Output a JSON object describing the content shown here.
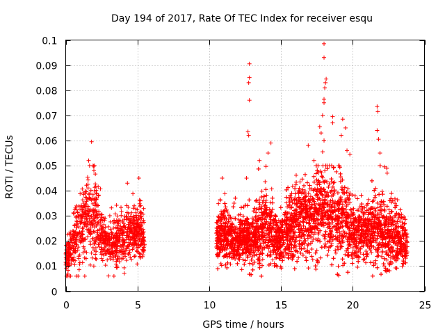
{
  "chart_data": {
    "type": "scatter",
    "title": "Day 194 of 2017, Rate Of TEC Index for receiver esqu",
    "xlabel": "GPS time / hours",
    "ylabel": "ROTI / TECUs",
    "xlim": [
      0,
      25
    ],
    "ylim": [
      0,
      0.1
    ],
    "xticks": [
      0,
      5,
      10,
      15,
      20,
      25
    ],
    "xtick_labels": [
      "0",
      "5",
      "10",
      "15",
      "20",
      "25"
    ],
    "yticks": [
      0,
      0.01,
      0.02,
      0.03,
      0.04,
      0.05,
      0.06,
      0.07,
      0.08,
      0.09,
      0.1
    ],
    "ytick_labels": [
      "0",
      "0.01",
      "0.02",
      "0.03",
      "0.04",
      "0.05",
      "0.06",
      "0.07",
      "0.08",
      "0.09",
      "0.1"
    ],
    "grid": true,
    "marker": "+",
    "color": "#ff0000",
    "series": [
      {
        "name": "ROTI",
        "segments": [
          {
            "x_start": 0.0,
            "x_end": 5.5,
            "density": 950,
            "profile": [
              [
                0.0,
                0.013,
                0.003
              ],
              [
                0.5,
                0.018,
                0.006
              ],
              [
                1.0,
                0.025,
                0.008
              ],
              [
                1.5,
                0.03,
                0.009
              ],
              [
                2.0,
                0.028,
                0.009
              ],
              [
                2.5,
                0.022,
                0.006
              ],
              [
                3.0,
                0.019,
                0.005
              ],
              [
                3.5,
                0.02,
                0.006
              ],
              [
                4.0,
                0.021,
                0.006
              ],
              [
                4.5,
                0.022,
                0.006
              ],
              [
                5.0,
                0.024,
                0.006
              ],
              [
                5.5,
                0.022,
                0.005
              ]
            ]
          },
          {
            "x_start": 10.5,
            "x_end": 23.8,
            "density": 4400,
            "profile": [
              [
                10.5,
                0.02,
                0.005
              ],
              [
                11.0,
                0.024,
                0.007
              ],
              [
                11.5,
                0.02,
                0.006
              ],
              [
                12.0,
                0.02,
                0.005
              ],
              [
                12.5,
                0.022,
                0.006
              ],
              [
                13.0,
                0.021,
                0.007
              ],
              [
                13.5,
                0.024,
                0.008
              ],
              [
                14.0,
                0.026,
                0.009
              ],
              [
                14.5,
                0.022,
                0.007
              ],
              [
                15.0,
                0.02,
                0.006
              ],
              [
                15.5,
                0.024,
                0.007
              ],
              [
                16.0,
                0.027,
                0.008
              ],
              [
                16.5,
                0.029,
                0.008
              ],
              [
                17.0,
                0.028,
                0.008
              ],
              [
                17.5,
                0.03,
                0.01
              ],
              [
                18.0,
                0.031,
                0.011
              ],
              [
                18.5,
                0.029,
                0.009
              ],
              [
                19.0,
                0.03,
                0.01
              ],
              [
                19.5,
                0.029,
                0.009
              ],
              [
                20.0,
                0.022,
                0.007
              ],
              [
                20.5,
                0.024,
                0.007
              ],
              [
                21.0,
                0.023,
                0.007
              ],
              [
                21.5,
                0.025,
                0.009
              ],
              [
                22.0,
                0.024,
                0.009
              ],
              [
                22.5,
                0.021,
                0.007
              ],
              [
                23.0,
                0.021,
                0.007
              ],
              [
                23.5,
                0.02,
                0.006
              ],
              [
                23.8,
                0.019,
                0.005
              ]
            ]
          }
        ],
        "outliers": [
          [
            1.8,
            0.0595
          ],
          [
            1.6,
            0.052
          ],
          [
            2.0,
            0.05
          ],
          [
            4.3,
            0.043
          ],
          [
            5.1,
            0.045
          ],
          [
            10.9,
            0.045
          ],
          [
            12.6,
            0.045
          ],
          [
            12.8,
            0.0905
          ],
          [
            12.8,
            0.085
          ],
          [
            12.75,
            0.083
          ],
          [
            12.8,
            0.076
          ],
          [
            12.7,
            0.0635
          ],
          [
            12.75,
            0.062
          ],
          [
            13.5,
            0.052
          ],
          [
            14.3,
            0.059
          ],
          [
            14.1,
            0.055
          ],
          [
            16.9,
            0.058
          ],
          [
            17.3,
            0.052
          ],
          [
            17.7,
            0.0655
          ],
          [
            17.8,
            0.063
          ],
          [
            17.9,
            0.07
          ],
          [
            18.0,
            0.0765
          ],
          [
            18.0,
            0.075
          ],
          [
            18.05,
            0.081
          ],
          [
            18.1,
            0.083
          ],
          [
            18.15,
            0.0845
          ],
          [
            17.9,
            0.0555
          ],
          [
            18.0,
            0.06
          ],
          [
            18.0,
            0.0985
          ],
          [
            18.0,
            0.093
          ],
          [
            18.6,
            0.0695
          ],
          [
            18.6,
            0.067
          ],
          [
            19.3,
            0.0685
          ],
          [
            19.5,
            0.065
          ],
          [
            19.2,
            0.062
          ],
          [
            19.8,
            0.0545
          ],
          [
            19.6,
            0.056
          ],
          [
            21.7,
            0.0735
          ],
          [
            21.75,
            0.0715
          ],
          [
            21.7,
            0.064
          ],
          [
            21.8,
            0.0605
          ],
          [
            21.9,
            0.055
          ],
          [
            22.2,
            0.0495
          ],
          [
            22.4,
            0.047
          ]
        ]
      }
    ]
  }
}
